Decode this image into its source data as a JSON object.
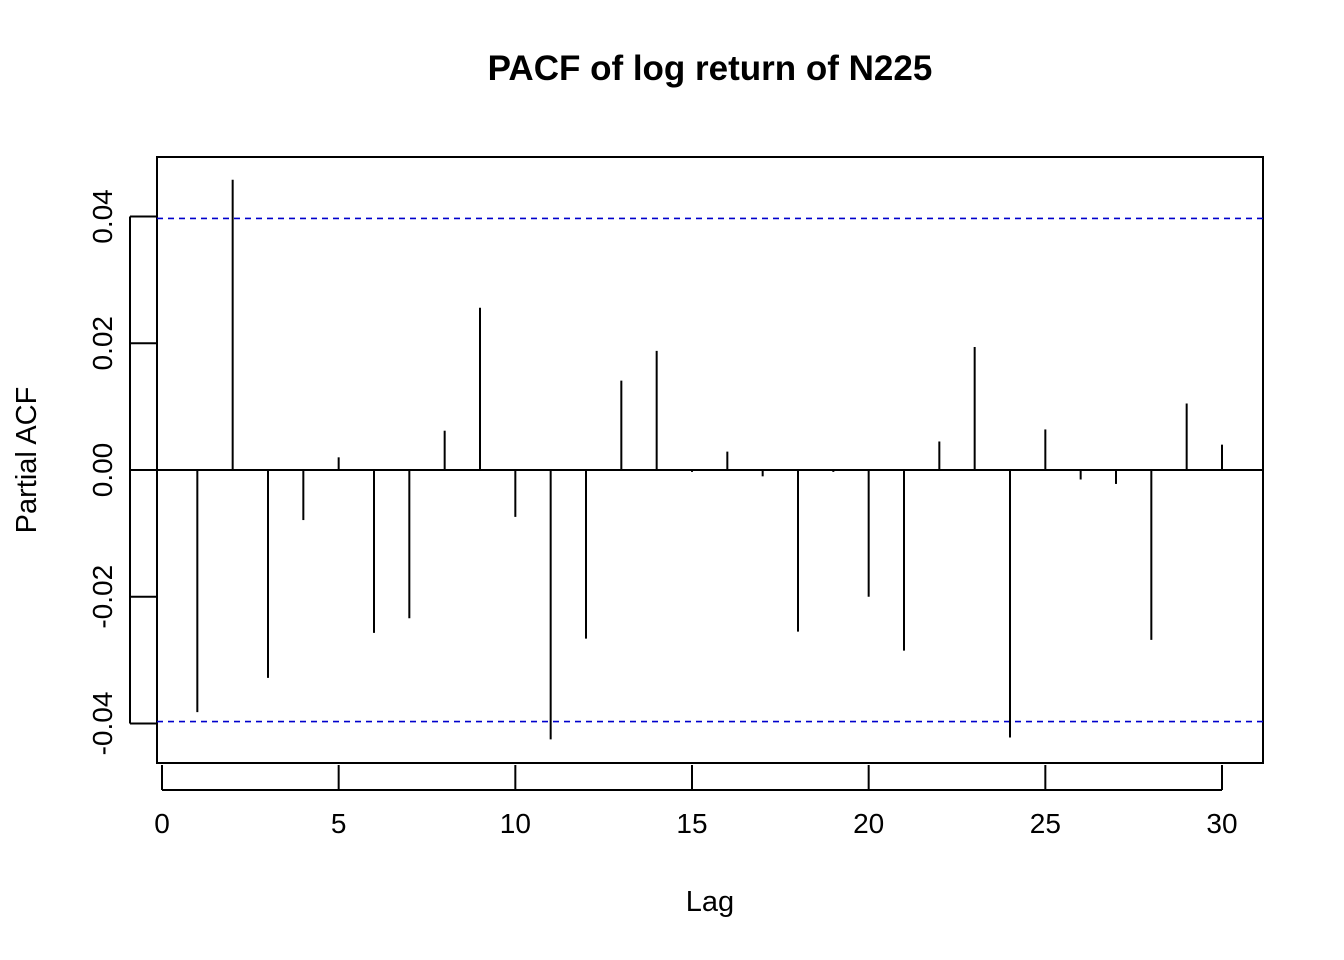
{
  "chart_data": {
    "type": "bar",
    "title": "PACF of log return of N225",
    "xlabel": "Lag",
    "ylabel": "Partial ACF",
    "x": [
      1,
      2,
      3,
      4,
      5,
      6,
      7,
      8,
      9,
      10,
      11,
      12,
      13,
      14,
      15,
      16,
      17,
      18,
      19,
      20,
      21,
      22,
      23,
      24,
      25,
      26,
      27,
      28,
      29,
      30
    ],
    "values": [
      -0.0382,
      0.0458,
      -0.0328,
      -0.0079,
      0.002,
      -0.0257,
      -0.0234,
      0.0062,
      0.0256,
      -0.0074,
      -0.0425,
      -0.0266,
      0.0141,
      0.0188,
      -0.0003,
      0.0029,
      -0.001,
      -0.0255,
      -0.0003,
      -0.02,
      -0.0285,
      0.0045,
      0.0194,
      -0.0422,
      0.0064,
      -0.0015,
      -0.0022,
      -0.0268,
      0.0105,
      0.004
    ],
    "confidence_bound": 0.0397,
    "confidence_color": "#0000cc",
    "xlim": [
      0,
      31
    ],
    "ylim": [
      -0.046,
      0.049
    ],
    "xticks": [
      0,
      5,
      10,
      15,
      20,
      25,
      30
    ],
    "xtick_labels": [
      "0",
      "5",
      "10",
      "15",
      "20",
      "25",
      "30"
    ],
    "yticks": [
      -0.04,
      -0.02,
      0.0,
      0.02,
      0.04
    ],
    "ytick_labels": [
      "-0.04",
      "-0.02",
      "0.00",
      "0.02",
      "0.04"
    ],
    "grid": false
  }
}
